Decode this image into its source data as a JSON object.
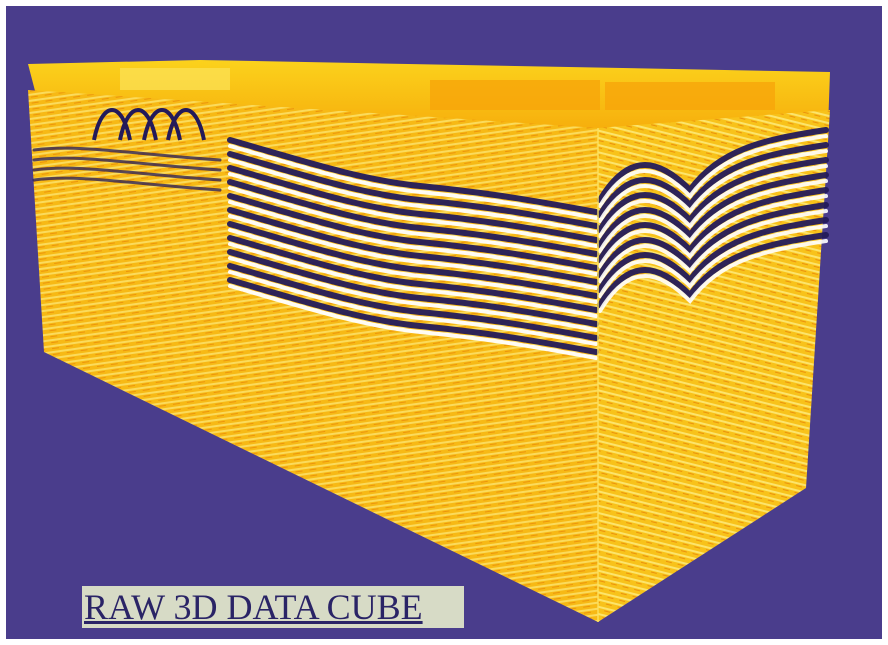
{
  "caption": "RAW 3D DATA CUBE",
  "colors": {
    "background": "#4a3d8c",
    "cube_base": "#f9c012",
    "cube_light": "#fde86a",
    "reflector_dark": "#231a5a",
    "reflector_light": "#ffffff",
    "caption_bg": "#d7dbc6",
    "caption_text": "#2a2466"
  }
}
